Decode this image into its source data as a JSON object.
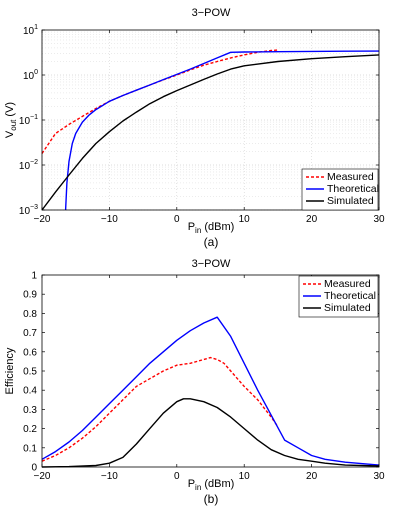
{
  "chart_data": [
    {
      "type": "line",
      "panel_label": "(a)",
      "title": "3−POW",
      "xlabel_main": "P",
      "xlabel_sub": "in",
      "xlabel_unit": " (dBm)",
      "ylabel_main": "V",
      "ylabel_sub": "out",
      "ylabel_unit": " (V)",
      "yscale": "log",
      "grid": true,
      "legend_position": "bottom-right",
      "xlim": [
        -20,
        30
      ],
      "ylim": [
        0.001,
        10
      ],
      "xticks": [
        "−20",
        "−10",
        "0",
        "10",
        "20",
        "30"
      ],
      "yticks": [
        {
          "base": "10",
          "exp": "1"
        },
        {
          "base": "10",
          "exp": "0"
        },
        {
          "base": "10",
          "exp": "−1"
        },
        {
          "base": "10",
          "exp": "−2"
        },
        {
          "base": "10",
          "exp": "−3"
        }
      ],
      "series": [
        {
          "name": "Measured",
          "color": "#ff0000",
          "style": "dashed",
          "x": [
            -20,
            -18,
            -16,
            -14,
            -12,
            -10,
            -8,
            -6,
            -4,
            -2,
            0,
            2,
            4,
            6,
            8,
            10,
            12,
            14,
            15
          ],
          "y": [
            0.018,
            0.05,
            0.08,
            0.12,
            0.18,
            0.26,
            0.35,
            0.46,
            0.6,
            0.78,
            1.0,
            1.3,
            1.65,
            2.0,
            2.4,
            2.8,
            3.2,
            3.5,
            3.6
          ]
        },
        {
          "name": "Theoretical",
          "color": "#0000ff",
          "style": "solid",
          "x": [
            -16.5,
            -16.3,
            -16.0,
            -15.5,
            -15,
            -14,
            -13,
            -12,
            -10,
            -8,
            -6,
            -4,
            -2,
            0,
            2,
            4,
            6,
            8,
            10,
            15,
            20,
            25,
            30
          ],
          "y": [
            0.001,
            0.004,
            0.012,
            0.03,
            0.05,
            0.09,
            0.13,
            0.17,
            0.26,
            0.35,
            0.46,
            0.6,
            0.79,
            1.03,
            1.35,
            1.8,
            2.4,
            3.2,
            3.25,
            3.3,
            3.35,
            3.38,
            3.4
          ]
        },
        {
          "name": "Simulated",
          "color": "#000000",
          "style": "solid",
          "x": [
            -20,
            -18,
            -16,
            -14,
            -12,
            -10,
            -8,
            -6,
            -4,
            -2,
            0,
            2,
            4,
            6,
            8,
            10,
            15,
            20,
            25,
            30
          ],
          "y": [
            0.001,
            0.0025,
            0.006,
            0.014,
            0.03,
            0.055,
            0.095,
            0.15,
            0.23,
            0.33,
            0.45,
            0.6,
            0.8,
            1.05,
            1.35,
            1.6,
            2.0,
            2.3,
            2.55,
            2.8
          ]
        }
      ]
    },
    {
      "type": "line",
      "panel_label": "(b)",
      "title": "3−POW",
      "xlabel_main": "P",
      "xlabel_sub": "in",
      "xlabel_unit": " (dBm)",
      "ylabel": "Efficiency",
      "yscale": "linear",
      "grid": false,
      "legend_position": "top-right",
      "xlim": [
        -20,
        30
      ],
      "ylim": [
        0,
        1
      ],
      "xticks": [
        "−20",
        "−10",
        "0",
        "10",
        "20",
        "30"
      ],
      "yticks": [
        "0",
        "0.1",
        "0.2",
        "0.3",
        "0.4",
        "0.5",
        "0.6",
        "0.7",
        "0.8",
        "0.9",
        "1"
      ],
      "series": [
        {
          "name": "Measured",
          "color": "#ff0000",
          "style": "dashed",
          "x": [
            -20,
            -18,
            -16,
            -14,
            -12,
            -10,
            -8,
            -6,
            -4,
            -2,
            0,
            2,
            4,
            5,
            6,
            7,
            8,
            10,
            12,
            14,
            15
          ],
          "y": [
            0.03,
            0.06,
            0.1,
            0.15,
            0.21,
            0.28,
            0.35,
            0.42,
            0.46,
            0.5,
            0.53,
            0.54,
            0.56,
            0.57,
            0.56,
            0.54,
            0.5,
            0.42,
            0.35,
            0.26,
            0.21
          ]
        },
        {
          "name": "Theoretical",
          "color": "#0000ff",
          "style": "solid",
          "x": [
            -20,
            -18,
            -16,
            -14,
            -12,
            -10,
            -8,
            -6,
            -4,
            -2,
            0,
            2,
            4,
            6,
            8,
            10,
            12,
            14,
            16,
            18,
            20,
            22,
            25,
            30
          ],
          "y": [
            0.04,
            0.08,
            0.13,
            0.19,
            0.26,
            0.33,
            0.4,
            0.47,
            0.54,
            0.6,
            0.66,
            0.71,
            0.75,
            0.78,
            0.68,
            0.54,
            0.4,
            0.27,
            0.14,
            0.1,
            0.06,
            0.04,
            0.025,
            0.01
          ]
        },
        {
          "name": "Simulated",
          "color": "#000000",
          "style": "solid",
          "x": [
            -20,
            -16,
            -12,
            -10,
            -8,
            -6,
            -4,
            -2,
            0,
            1,
            2,
            4,
            6,
            8,
            10,
            12,
            14,
            16,
            18,
            20,
            22,
            25,
            30
          ],
          "y": [
            0.0,
            0.002,
            0.008,
            0.02,
            0.05,
            0.12,
            0.2,
            0.28,
            0.34,
            0.355,
            0.355,
            0.34,
            0.31,
            0.26,
            0.2,
            0.14,
            0.09,
            0.06,
            0.04,
            0.03,
            0.02,
            0.01,
            0.005
          ]
        }
      ]
    }
  ]
}
